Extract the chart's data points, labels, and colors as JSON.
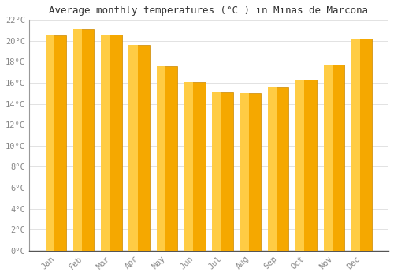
{
  "title": "Average monthly temperatures (°C ) in Minas de Marcona",
  "months": [
    "Jan",
    "Feb",
    "Mar",
    "Apr",
    "May",
    "Jun",
    "Jul",
    "Aug",
    "Sep",
    "Oct",
    "Nov",
    "Dec"
  ],
  "values": [
    20.5,
    21.1,
    20.6,
    19.6,
    17.6,
    16.1,
    15.1,
    15.0,
    15.6,
    16.3,
    17.7,
    20.2
  ],
  "bar_color_main": "#F5A800",
  "bar_color_light": "#FFCC44",
  "bar_color_edge": "#CC8800",
  "background_color": "#FFFFFF",
  "grid_color": "#DDDDDD",
  "ylim": [
    0,
    22
  ],
  "yticks": [
    0,
    2,
    4,
    6,
    8,
    10,
    12,
    14,
    16,
    18,
    20,
    22
  ],
  "ytick_labels": [
    "0°C",
    "2°C",
    "4°C",
    "6°C",
    "8°C",
    "10°C",
    "12°C",
    "14°C",
    "16°C",
    "18°C",
    "20°C",
    "22°C"
  ],
  "title_fontsize": 9,
  "tick_fontsize": 7.5,
  "tick_color": "#888888",
  "font_family": "monospace",
  "bar_width": 0.75
}
